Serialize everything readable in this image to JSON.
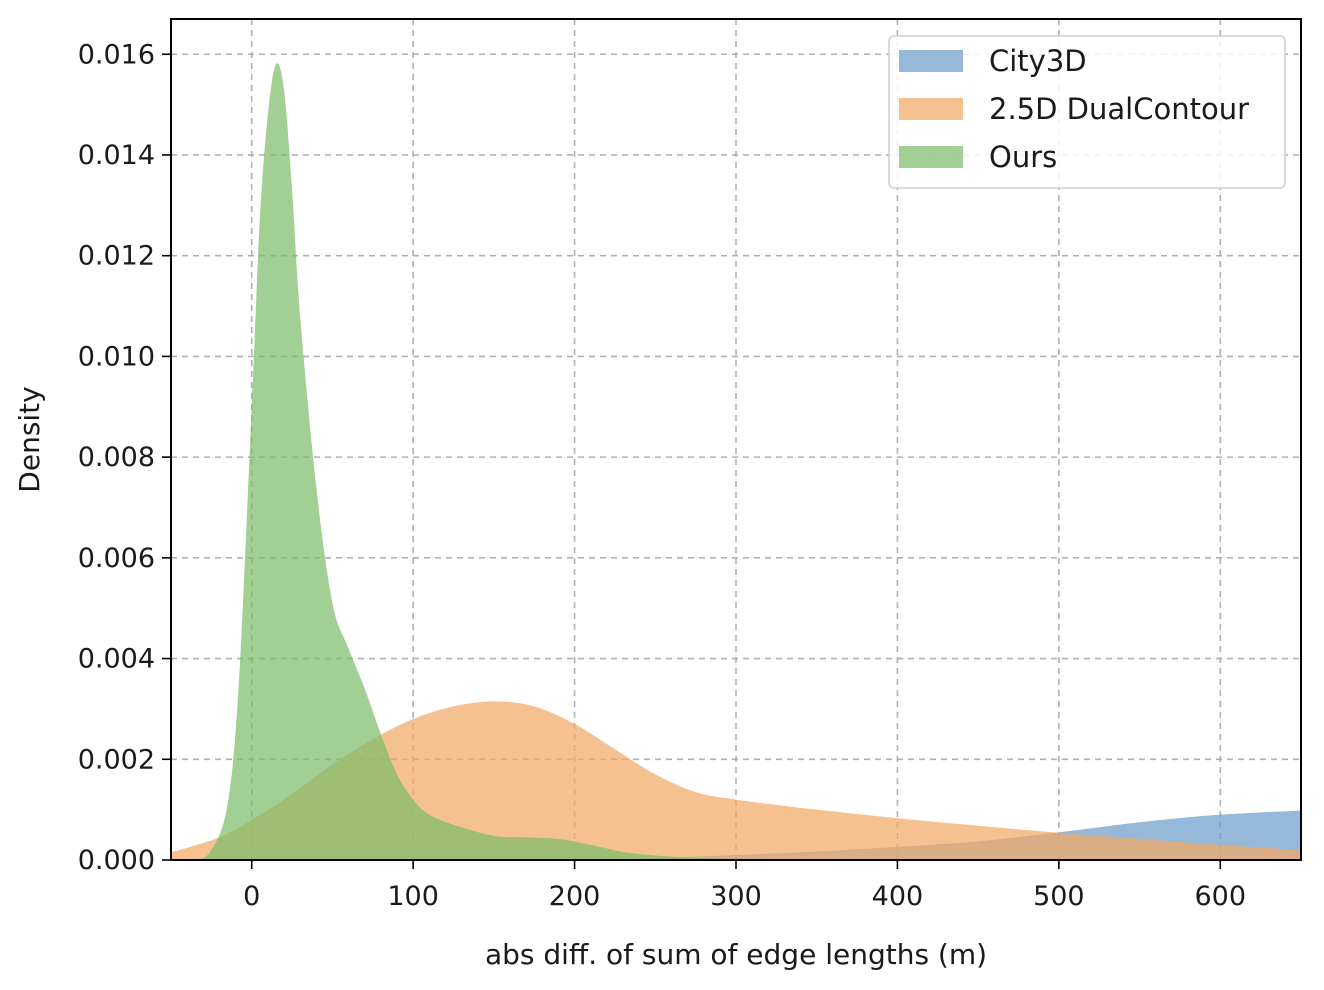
{
  "chart_data": {
    "type": "area",
    "title": "",
    "xlabel": "abs diff. of sum of edge lengths (m)",
    "ylabel": "Density",
    "xlim": [
      -50,
      650
    ],
    "ylim": [
      0,
      0.0167
    ],
    "xticks": [
      0,
      100,
      200,
      300,
      400,
      500,
      600
    ],
    "yticks": [
      0.0,
      0.002,
      0.004,
      0.006,
      0.008,
      0.01,
      0.012,
      0.014,
      0.016
    ],
    "xtick_labels": [
      "0",
      "100",
      "200",
      "300",
      "400",
      "500",
      "600"
    ],
    "ytick_labels": [
      "0.000",
      "0.002",
      "0.004",
      "0.006",
      "0.008",
      "0.010",
      "0.012",
      "0.014",
      "0.016"
    ],
    "grid": true,
    "legend_position": "top-right",
    "series": [
      {
        "name": "City3D",
        "color": "#6e9ccb",
        "x": [
          -50,
          0,
          100,
          200,
          240,
          260,
          300,
          350,
          400,
          450,
          500,
          550,
          600,
          650
        ],
        "y": [
          0,
          0,
          0,
          0,
          2e-05,
          5e-05,
          0.0001,
          0.00017,
          0.00026,
          0.00037,
          0.00055,
          0.00075,
          0.0009,
          0.00098
        ]
      },
      {
        "name": "2.5D DualContour",
        "color": "#f3a965",
        "x": [
          -50,
          -20,
          0,
          20,
          50,
          75,
          100,
          125,
          150,
          175,
          200,
          225,
          250,
          275,
          300,
          350,
          400,
          450,
          500,
          550,
          600,
          650
        ],
        "y": [
          0.00015,
          0.00045,
          0.0008,
          0.0012,
          0.0019,
          0.0024,
          0.0028,
          0.00305,
          0.00315,
          0.00305,
          0.0027,
          0.0022,
          0.0017,
          0.00135,
          0.0012,
          0.001,
          0.00083,
          0.00068,
          0.00054,
          0.00042,
          0.0003,
          0.0002
        ]
      },
      {
        "name": "Ours",
        "color": "#7dbd6b",
        "x": [
          -50,
          -35,
          -25,
          -15,
          -8,
          0,
          5,
          10,
          15,
          20,
          25,
          30,
          40,
          50,
          60,
          70,
          80,
          90,
          100,
          110,
          125,
          150,
          170,
          190,
          210,
          230,
          250,
          270,
          290,
          310,
          350,
          400,
          650
        ],
        "y": [
          0,
          0,
          0.0002,
          0.0011,
          0.0035,
          0.009,
          0.0127,
          0.0148,
          0.0158,
          0.0153,
          0.0133,
          0.0108,
          0.0074,
          0.0051,
          0.0042,
          0.0034,
          0.0025,
          0.0017,
          0.0012,
          0.0009,
          0.0007,
          0.00048,
          0.00045,
          0.00042,
          0.0003,
          0.00016,
          9e-05,
          5e-05,
          3e-05,
          1e-05,
          0,
          0,
          0
        ]
      }
    ]
  }
}
